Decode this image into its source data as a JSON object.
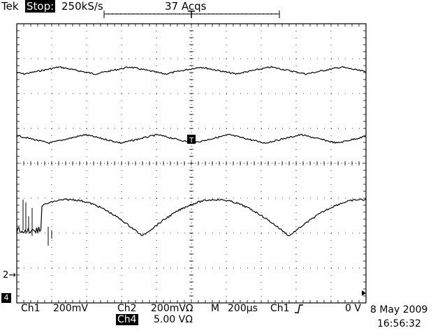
{
  "header": {
    "brand": "Tek",
    "state": "Stop:",
    "sample_rate": "250kS/s",
    "acquisitions": "37 Acqs"
  },
  "markers": {
    "ch2_ground": "2→",
    "ch4_ground": "4"
  },
  "status": {
    "ch1_label": "Ch1",
    "ch1_scale": "200mV",
    "ch2_label": "Ch2",
    "ch2_scale": "200mVΩ",
    "time_label": "M",
    "time_scale": "200µs",
    "trigger_source": "Ch1",
    "trigger_slope_icon": "rising-edge-icon",
    "trigger_level": "0 V",
    "ch4_label": "Ch4",
    "ch4_scale": "5.00 VΩ",
    "date": "8 May 2009",
    "time": "16:56:32"
  },
  "colors": {
    "trace": "#000000",
    "graticule": "#000000",
    "background": "#ffffff"
  }
}
